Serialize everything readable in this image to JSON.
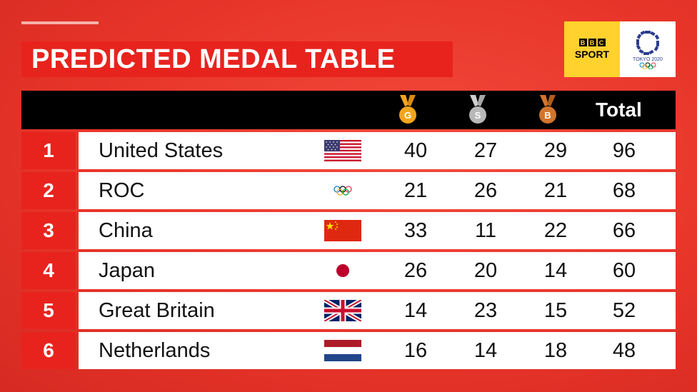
{
  "title": "PREDICTED MEDAL TABLE",
  "logos": {
    "bbc_letters": [
      "B",
      "B",
      "C"
    ],
    "bbc_sport": "SPORT",
    "tokyo_text": "TOKYO 2020"
  },
  "header": {
    "gold": "G",
    "silver": "S",
    "bronze": "B",
    "total": "Total"
  },
  "colors": {
    "background": "#e8352a",
    "title_bg": "#e8231e",
    "gold": "#f2a51c",
    "silver": "#b8b8b8",
    "bronze": "#d2752e"
  },
  "rows": [
    {
      "rank": "1",
      "country": "United States",
      "flag": "usa-flag-icon",
      "gold": "40",
      "silver": "27",
      "bronze": "29",
      "total": "96"
    },
    {
      "rank": "2",
      "country": "ROC",
      "flag": "olympic-rings-icon",
      "gold": "21",
      "silver": "26",
      "bronze": "21",
      "total": "68"
    },
    {
      "rank": "3",
      "country": "China",
      "flag": "china-flag-icon",
      "gold": "33",
      "silver": "11",
      "bronze": "22",
      "total": "66"
    },
    {
      "rank": "4",
      "country": "Japan",
      "flag": "japan-flag-icon",
      "gold": "26",
      "silver": "20",
      "bronze": "14",
      "total": "60"
    },
    {
      "rank": "5",
      "country": "Great Britain",
      "flag": "uk-flag-icon",
      "gold": "14",
      "silver": "23",
      "bronze": "15",
      "total": "52"
    },
    {
      "rank": "6",
      "country": "Netherlands",
      "flag": "netherlands-flag-icon",
      "gold": "16",
      "silver": "14",
      "bronze": "18",
      "total": "48"
    }
  ]
}
